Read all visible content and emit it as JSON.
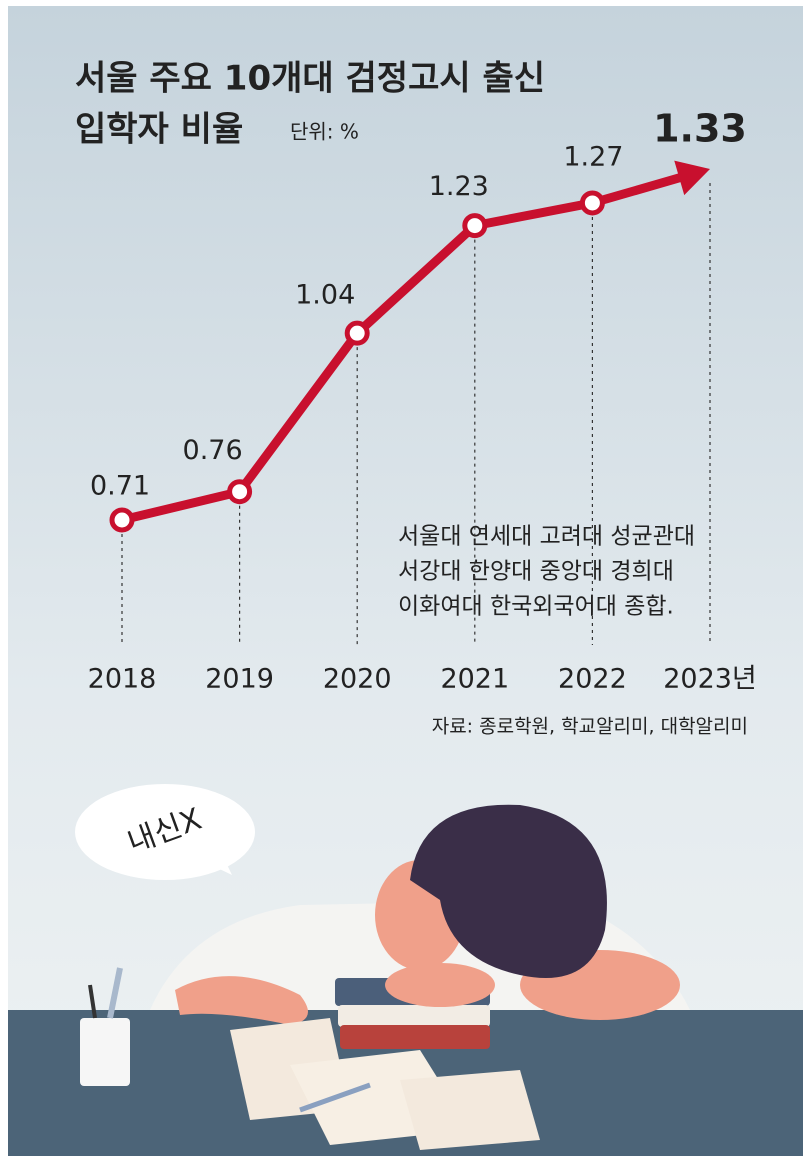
{
  "chart_data": {
    "type": "line",
    "title_lines": [
      "서울 주요 10개대 검정고시 출신",
      "입학자 비율"
    ],
    "unit": "단위: %",
    "categories": [
      "2018",
      "2019",
      "2020",
      "2021",
      "2022",
      "2023년"
    ],
    "values": [
      0.71,
      0.76,
      1.04,
      1.23,
      1.27,
      1.33
    ],
    "color": "#c8102e",
    "note_lines": [
      "서울대 연세대 고려대 성균관대",
      "서강대 한양대 중앙대 경희대",
      "이화여대 한국외국어대 종합."
    ],
    "source": "자료: 종로학원, 학교알리미, 대학알리미",
    "bubble": "내신X"
  }
}
